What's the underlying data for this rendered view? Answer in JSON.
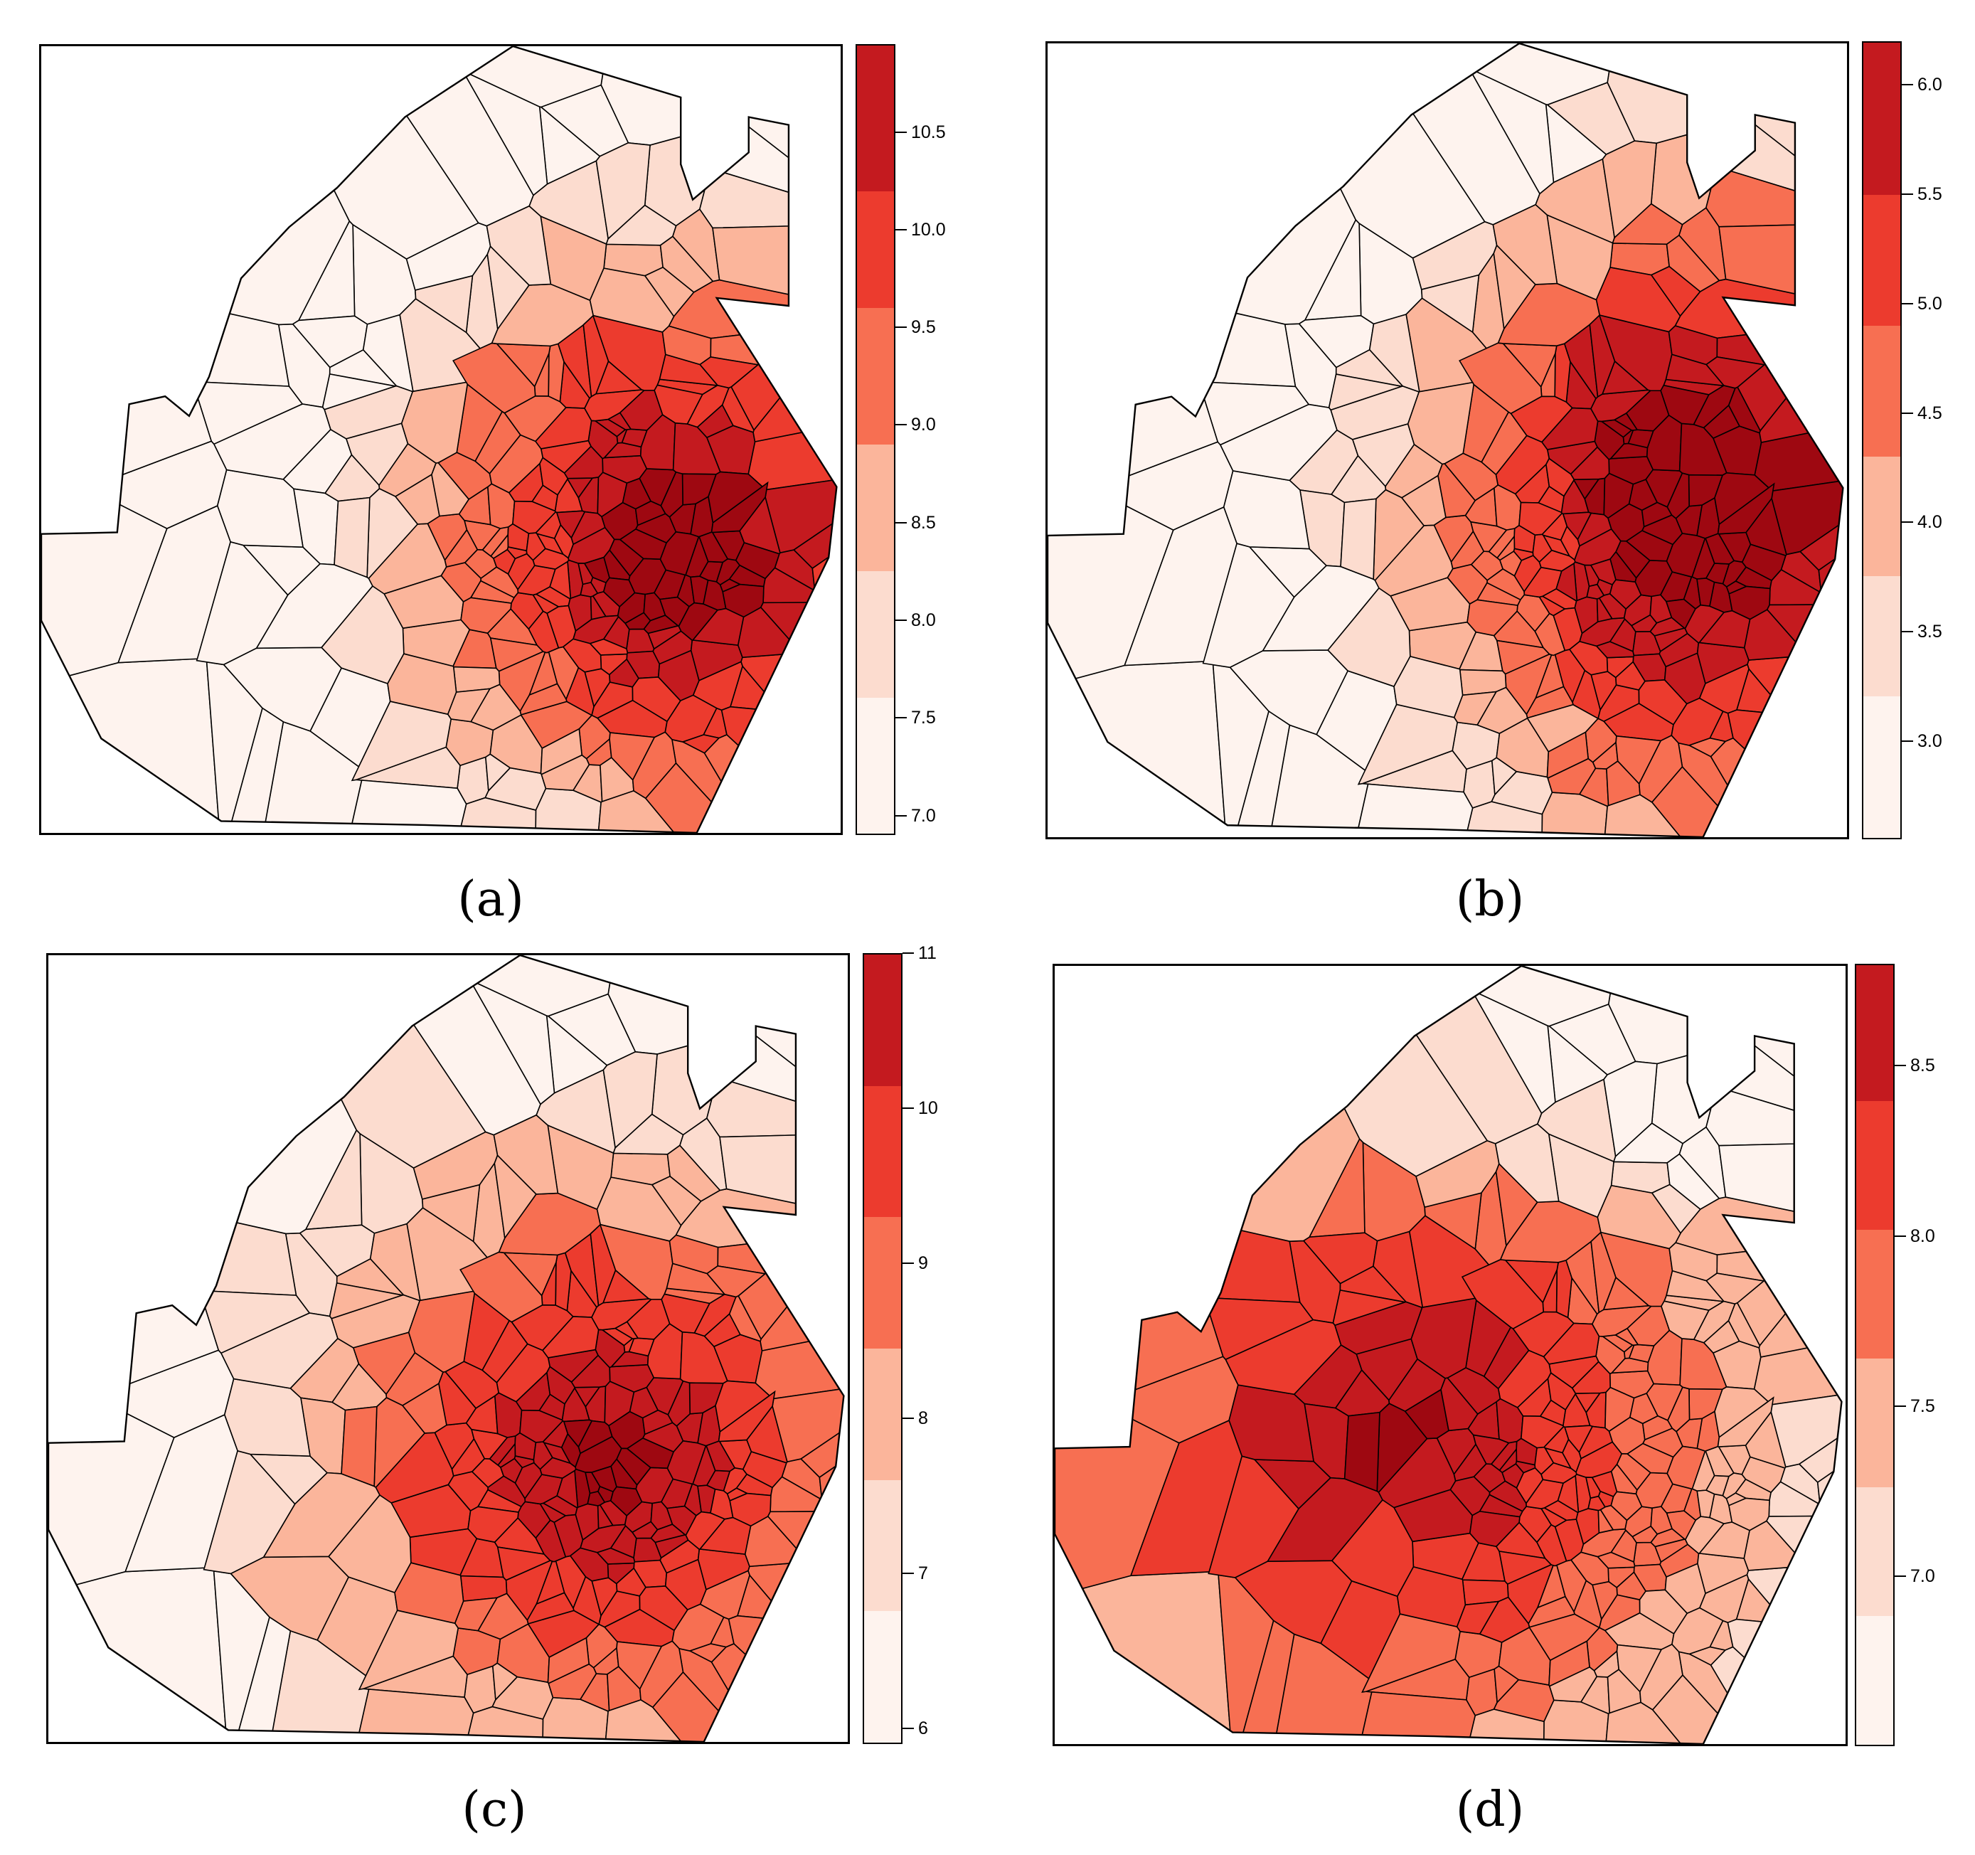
{
  "palette": [
    "#fef3ee",
    "#fcdccf",
    "#fbb59b",
    "#f76f52",
    "#ec3b2e",
    "#c41a1f",
    "#9e0811"
  ],
  "outline_color": "#000000",
  "panels": [
    {
      "caption": "(a)",
      "legend_ticks": [
        "7.0",
        "7.5",
        "8.0",
        "8.5",
        "9.0",
        "9.5",
        "10.0",
        "10.5"
      ],
      "legend_tick_values": [
        7.0,
        7.5,
        8.0,
        8.5,
        9.0,
        9.5,
        10.0,
        10.5
      ],
      "legend_range": [
        6.9,
        10.95
      ],
      "legend_breaks": [
        6.9,
        7.6,
        8.25,
        8.9,
        9.6,
        10.2,
        10.95
      ]
    },
    {
      "caption": "(b)",
      "legend_ticks": [
        "3.0",
        "3.5",
        "4.0",
        "4.5",
        "5.0",
        "5.5",
        "6.0"
      ],
      "legend_tick_values": [
        3.0,
        3.5,
        4.0,
        4.5,
        5.0,
        5.5,
        6.0
      ],
      "legend_range": [
        2.55,
        6.2
      ],
      "legend_breaks": [
        2.55,
        3.2,
        3.75,
        4.3,
        4.9,
        5.5,
        6.2
      ]
    },
    {
      "caption": "(c)",
      "legend_ticks": [
        "6",
        "7",
        "8",
        "9",
        "10",
        "11"
      ],
      "legend_tick_values": [
        6,
        7,
        8,
        9,
        10,
        11
      ],
      "legend_range": [
        5.9,
        11.0
      ],
      "legend_breaks": [
        5.9,
        6.75,
        7.6,
        8.45,
        9.3,
        10.15,
        11.0
      ]
    },
    {
      "caption": "(d)",
      "legend_ticks": [
        "7.0",
        "7.5",
        "8.0",
        "8.5"
      ],
      "legend_tick_values": [
        7.0,
        7.5,
        8.0,
        8.5
      ],
      "legend_range": [
        6.5,
        8.8
      ],
      "legend_breaks": [
        6.5,
        6.88,
        7.26,
        7.64,
        8.02,
        8.4,
        8.8
      ]
    }
  ]
}
